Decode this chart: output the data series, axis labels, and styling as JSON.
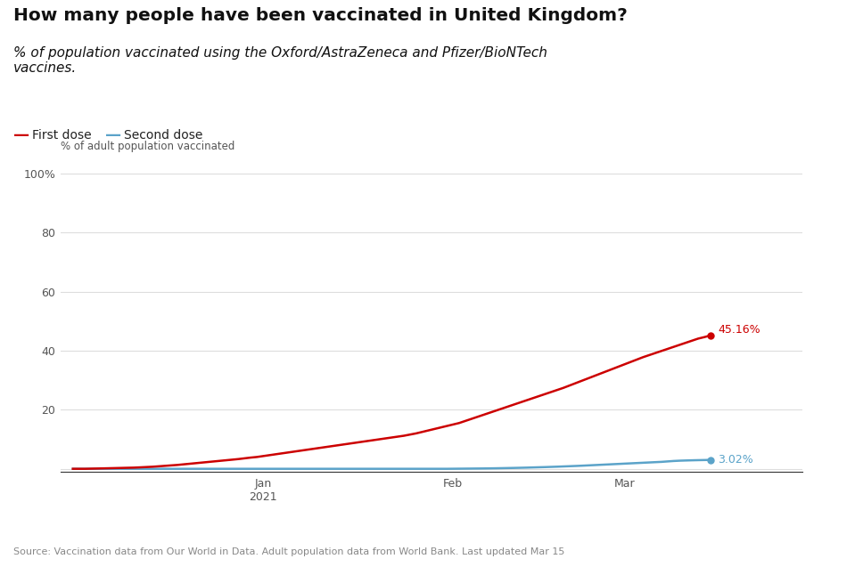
{
  "title": "How many people have been vaccinated in United Kingdom?",
  "subtitle": "% of population vaccinated using the Oxford/AstraZeneca and Pfizer/BioNTech\nvaccines.",
  "ylabel": "% of adult population vaccinated",
  "source": "Source: Vaccination data from Our World in Data. Adult population data from World Bank. Last updated Mar 15",
  "first_dose_label": "First dose",
  "second_dose_label": "Second dose",
  "first_dose_color": "#cc0000",
  "second_dose_color": "#5ba3c9",
  "end_label_first": "45.16%",
  "end_label_second": "3.02%",
  "yticks": [
    0,
    20,
    40,
    60,
    80,
    100
  ],
  "ytick_labels": [
    "",
    "20",
    "40",
    "60",
    "80",
    "100%"
  ],
  "total_days": 105,
  "first_dose_data": [
    0.0,
    0.0,
    0.0,
    0.05,
    0.1,
    0.15,
    0.2,
    0.25,
    0.3,
    0.35,
    0.4,
    0.5,
    0.6,
    0.7,
    0.85,
    1.0,
    1.15,
    1.3,
    1.5,
    1.7,
    1.9,
    2.1,
    2.3,
    2.5,
    2.7,
    2.9,
    3.1,
    3.3,
    3.55,
    3.8,
    4.0,
    4.3,
    4.6,
    4.9,
    5.2,
    5.5,
    5.8,
    6.1,
    6.4,
    6.7,
    7.0,
    7.3,
    7.6,
    7.9,
    8.2,
    8.5,
    8.8,
    9.1,
    9.4,
    9.7,
    10.0,
    10.3,
    10.6,
    10.9,
    11.2,
    11.6,
    12.0,
    12.5,
    13.0,
    13.5,
    14.0,
    14.5,
    15.0,
    15.5,
    16.2,
    16.9,
    17.6,
    18.3,
    19.0,
    19.7,
    20.4,
    21.1,
    21.8,
    22.5,
    23.2,
    23.9,
    24.6,
    25.3,
    26.0,
    26.7,
    27.4,
    28.2,
    29.0,
    29.8,
    30.6,
    31.4,
    32.2,
    33.0,
    33.8,
    34.6,
    35.4,
    36.2,
    37.0,
    37.8,
    38.5,
    39.2,
    39.9,
    40.6,
    41.3,
    42.0,
    42.7,
    43.4,
    44.1,
    44.6,
    45.16
  ],
  "second_dose_data": [
    0.0,
    0.0,
    0.0,
    0.0,
    0.0,
    0.0,
    0.0,
    0.0,
    0.0,
    0.0,
    0.0,
    0.0,
    0.0,
    0.0,
    0.0,
    0.0,
    0.0,
    0.0,
    0.0,
    0.0,
    0.0,
    0.0,
    0.0,
    0.0,
    0.0,
    0.0,
    0.0,
    0.0,
    0.0,
    0.0,
    0.0,
    0.0,
    0.0,
    0.0,
    0.0,
    0.0,
    0.0,
    0.0,
    0.0,
    0.0,
    0.0,
    0.0,
    0.0,
    0.0,
    0.0,
    0.0,
    0.0,
    0.0,
    0.0,
    0.0,
    0.0,
    0.0,
    0.0,
    0.0,
    0.0,
    0.0,
    0.0,
    0.0,
    0.0,
    0.0,
    0.0,
    0.0,
    0.02,
    0.04,
    0.06,
    0.08,
    0.1,
    0.12,
    0.15,
    0.18,
    0.22,
    0.26,
    0.3,
    0.35,
    0.4,
    0.46,
    0.52,
    0.58,
    0.65,
    0.72,
    0.8,
    0.88,
    0.96,
    1.05,
    1.15,
    1.25,
    1.35,
    1.45,
    1.55,
    1.65,
    1.75,
    1.85,
    1.95,
    2.05,
    2.15,
    2.25,
    2.35,
    2.5,
    2.65,
    2.75,
    2.82,
    2.88,
    2.93,
    2.97,
    3.02
  ]
}
